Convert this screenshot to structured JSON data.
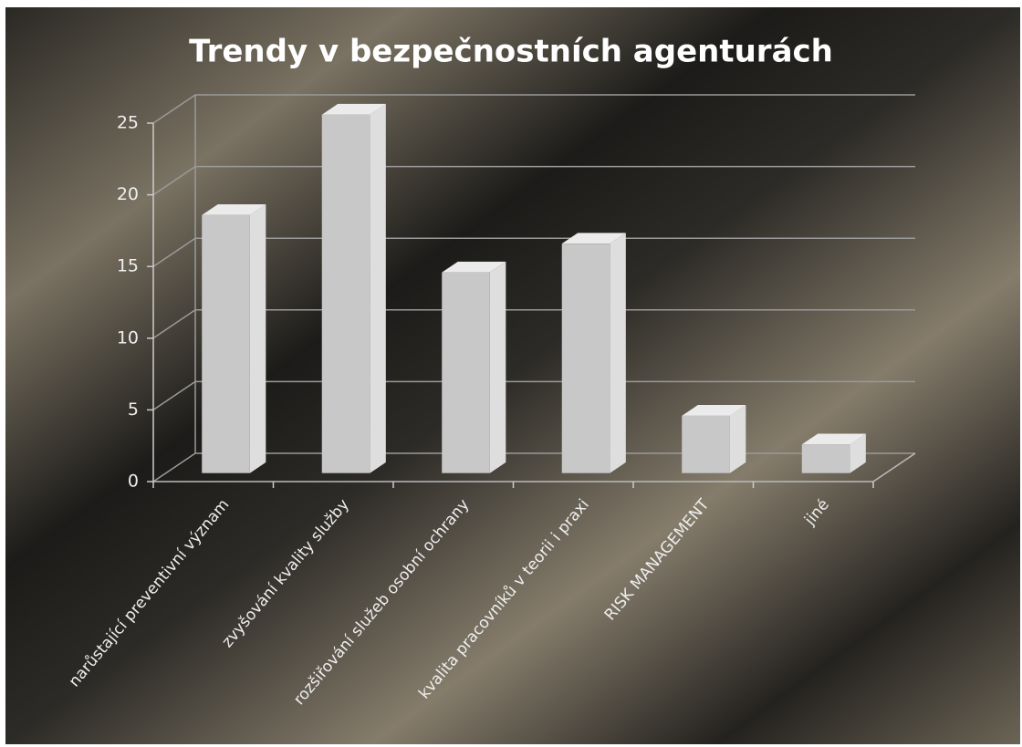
{
  "chart_data": {
    "type": "bar3d",
    "title": "Trendy v bezpečnostních agenturách",
    "categories": [
      "narůstající preventivní význam",
      "zvyšování kvality služby",
      "rozšiřování služeb osobní ochrany",
      "kvalita pracovníků v teorii i praxi",
      "RISK MANAGEMENT",
      "jiné"
    ],
    "values": [
      18,
      25,
      14,
      16,
      4,
      2
    ],
    "color": "#c8c8c8",
    "ylim": [
      0,
      25
    ],
    "yticks": [
      0,
      5,
      10,
      15,
      20,
      25
    ],
    "grid": true
  }
}
